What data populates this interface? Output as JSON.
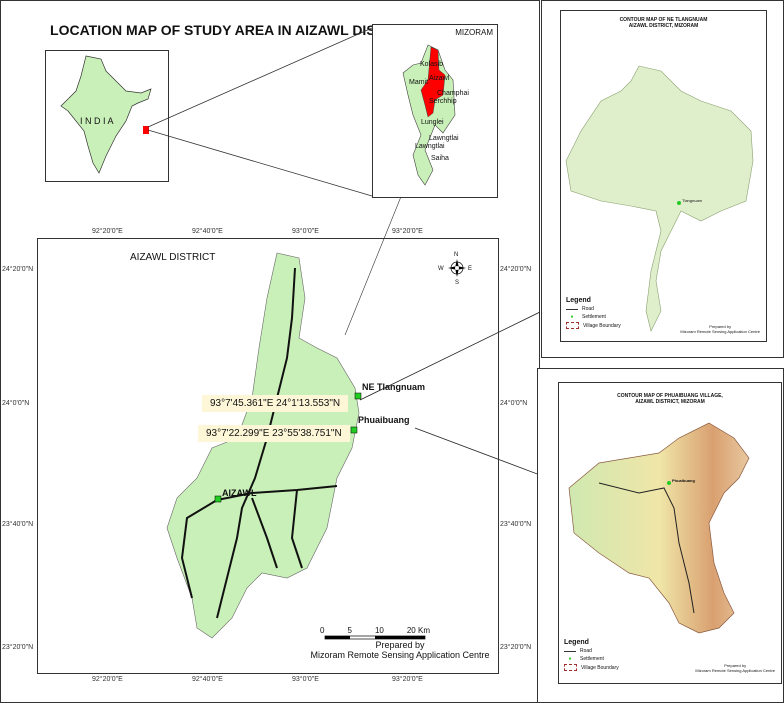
{
  "main": {
    "title": "LOCATION MAP OF STUDY AREA IN AIZAWL DISTRICT, MIZORAM",
    "india_label": "I N D I A",
    "mizoram_label": "MIZORAM",
    "districts": [
      "Kolasib",
      "Aizawl",
      "Mamit",
      "Champhai",
      "Serchhip",
      "Lunglei",
      "Lawngtlai",
      "Lawngtlai",
      "Saiha"
    ],
    "district_map_title": "AIZAWL DISTRICT",
    "top_ticks": [
      "92°20'0\"E",
      "92°40'0\"E",
      "93°0'0\"E",
      "93°20'0\"E"
    ],
    "bottom_ticks": [
      "92°20'0\"E",
      "92°40'0\"E",
      "93°0'0\"E",
      "93°20'0\"E"
    ],
    "left_ticks": [
      "24°20'0\"N",
      "24°0'0\"N",
      "23°40'0\"N",
      "23°20'0\"N"
    ],
    "right_ticks": [
      "24°20'0\"N",
      "24°0'0\"N",
      "23°40'0\"N",
      "23°20'0\"N"
    ],
    "places": {
      "ne_tlangnuam": "NE Tlangnuam",
      "phuaibuang": "Phuaibuang",
      "aizawl": "AIZAWL"
    },
    "coords": {
      "ne_tlangnuam": "93°7'45.361\"E  24°1'13.553\"N",
      "phuaibuang": "93°7'22.299\"E  23°55'38.751\"N"
    },
    "scale": {
      "labels": [
        "0",
        "5",
        "10",
        "20 Km"
      ]
    },
    "credit": {
      "line1": "Prepared by",
      "line2": "Mizoram Remote Sensing Application Centre"
    },
    "north": {
      "n": "N",
      "s": "S",
      "e": "E",
      "w": "W"
    }
  },
  "contour_ne": {
    "title1": "CONTOUR MAP OF NE TLANGNUAM",
    "title2": "AIZAWL DISTRICT, MIZORAM",
    "settlement": "Tlangnuam",
    "legend": {
      "title": "Legend",
      "items": [
        "Road",
        "Settlement",
        "Village Boundary"
      ]
    },
    "credit": {
      "line1": "Prepared by",
      "line2": "Mizoram Remote Sensing Application Centre"
    }
  },
  "contour_ph": {
    "title1": "CONTOUR MAP OF PHUAIBUANG VILLAGE,",
    "title2": "AIZAWL DISTRICT, MIZORAM",
    "settlement": "Phuaibuang",
    "legend": {
      "title": "Legend",
      "items": [
        "Road",
        "Settlement",
        "Village Boundary"
      ]
    },
    "credit": {
      "line1": "Prepared by",
      "line2": "Mizoram Remote Sensing Application Centre"
    }
  },
  "colors": {
    "land": "#c9f0b8",
    "highlight": "#ff0000",
    "settlement": "#22cc22",
    "coord_box": "#fdf7d8",
    "boundary": "#a03030"
  }
}
